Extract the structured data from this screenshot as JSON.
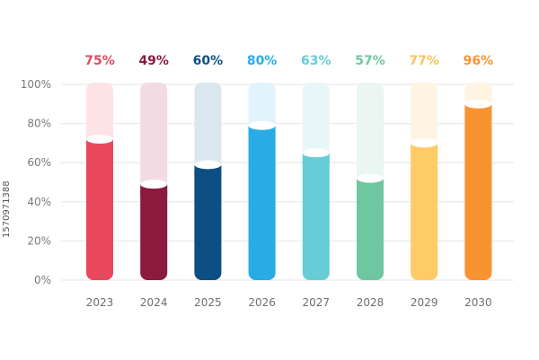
{
  "colors": {
    "grid": "#e6e6e6",
    "tick_text": "#7a7a7a",
    "year_text": "#6e6e6e"
  },
  "watermark": {
    "stock_id": "1570971388"
  },
  "chart_data": {
    "type": "bar",
    "categories": [
      "2023",
      "2024",
      "2025",
      "2026",
      "2027",
      "2028",
      "2029",
      "2030"
    ],
    "labels": [
      "75%",
      "49%",
      "60%",
      "80%",
      "63%",
      "57%",
      "77%",
      "96%"
    ],
    "values": [
      75,
      49,
      60,
      80,
      63,
      57,
      77,
      96
    ],
    "fill_levels": [
      72,
      49,
      59,
      79,
      65,
      52,
      70,
      90
    ],
    "bar_colors": [
      "#e8485c",
      "#8c1a3e",
      "#0d4f82",
      "#29ace6",
      "#66cdd6",
      "#6ec7a0",
      "#fecb66",
      "#f89331"
    ],
    "label_colors": [
      "#e04a5f",
      "#8c1a3e",
      "#0d4f82",
      "#29ace6",
      "#66cdd6",
      "#6ec7a0",
      "#fbc35c",
      "#f89331"
    ],
    "track_colors": [
      "#fde3e6",
      "#f2dbe3",
      "#dbe7ef",
      "#e1f3fb",
      "#e8f6f8",
      "#e9f6f1",
      "#fff4e2",
      "#fff3e2"
    ],
    "yticks": [
      "0%",
      "20%",
      "40%",
      "60%",
      "80%",
      "100%"
    ],
    "ylim": [
      0,
      100
    ],
    "grid": true,
    "legend": "none"
  }
}
